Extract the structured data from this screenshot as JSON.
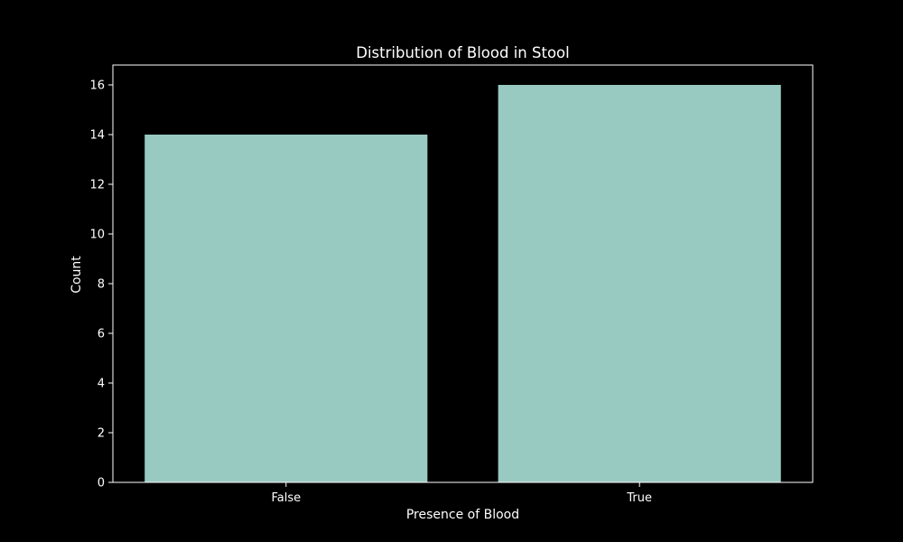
{
  "chart_data": {
    "type": "bar",
    "title": "Distribution of Blood in Stool",
    "xlabel": "Presence of Blood",
    "ylabel": "Count",
    "categories": [
      "False",
      "True"
    ],
    "values": [
      14,
      16
    ],
    "ylim": [
      0,
      16.8
    ],
    "yticks": [
      0,
      2,
      4,
      6,
      8,
      10,
      12,
      14,
      16
    ],
    "grid": false,
    "legend": "none",
    "colors": {
      "background": "#000000",
      "bar": "#99cac2",
      "axis": "#ffffff",
      "text": "#ffffff"
    }
  }
}
